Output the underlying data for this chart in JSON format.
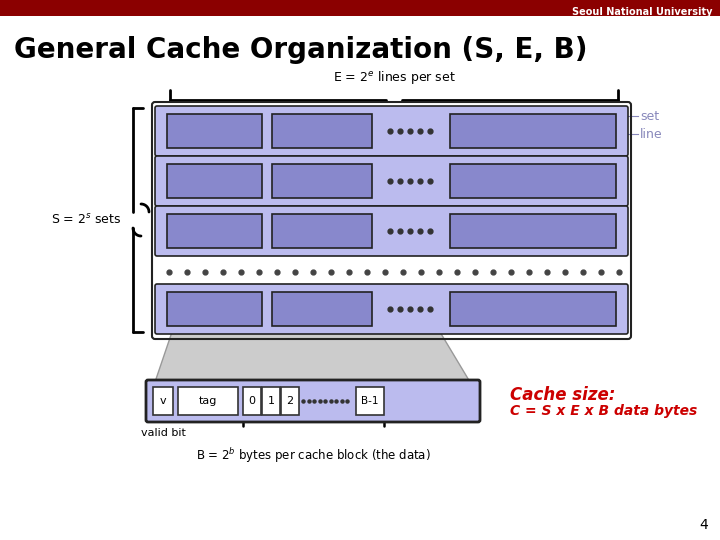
{
  "title": "General Cache Organization (S, E, B)",
  "header_text": "Seoul National University",
  "header_bg": "#8B0000",
  "header_fg": "#FFFFFF",
  "bg_color": "#FFFFFF",
  "title_color": "#000000",
  "title_fontsize": 20,
  "set_label": "S = 2$^s$ sets",
  "e_label": "E = 2$^e$ lines per set",
  "set_annot": "set",
  "line_annot": "line",
  "cache_size_title": "Cache size:",
  "cache_size_formula": "C = S x E x B data bytes",
  "b_label": "B = 2$^b$ bytes per cache block (the data)",
  "valid_bit_label": "valid bit",
  "line_box_color": "#8888CC",
  "line_box_border": "#222222",
  "set_bg_color": "#BBBBEE",
  "set_bg_border": "#222222",
  "expand_bg": "#CCCCCC",
  "bottom_box_bg": "#BBBBEE",
  "bottom_box_border": "#222222",
  "annot_color": "#8888BB",
  "cache_size_color": "#CC0000",
  "page_num": "4"
}
